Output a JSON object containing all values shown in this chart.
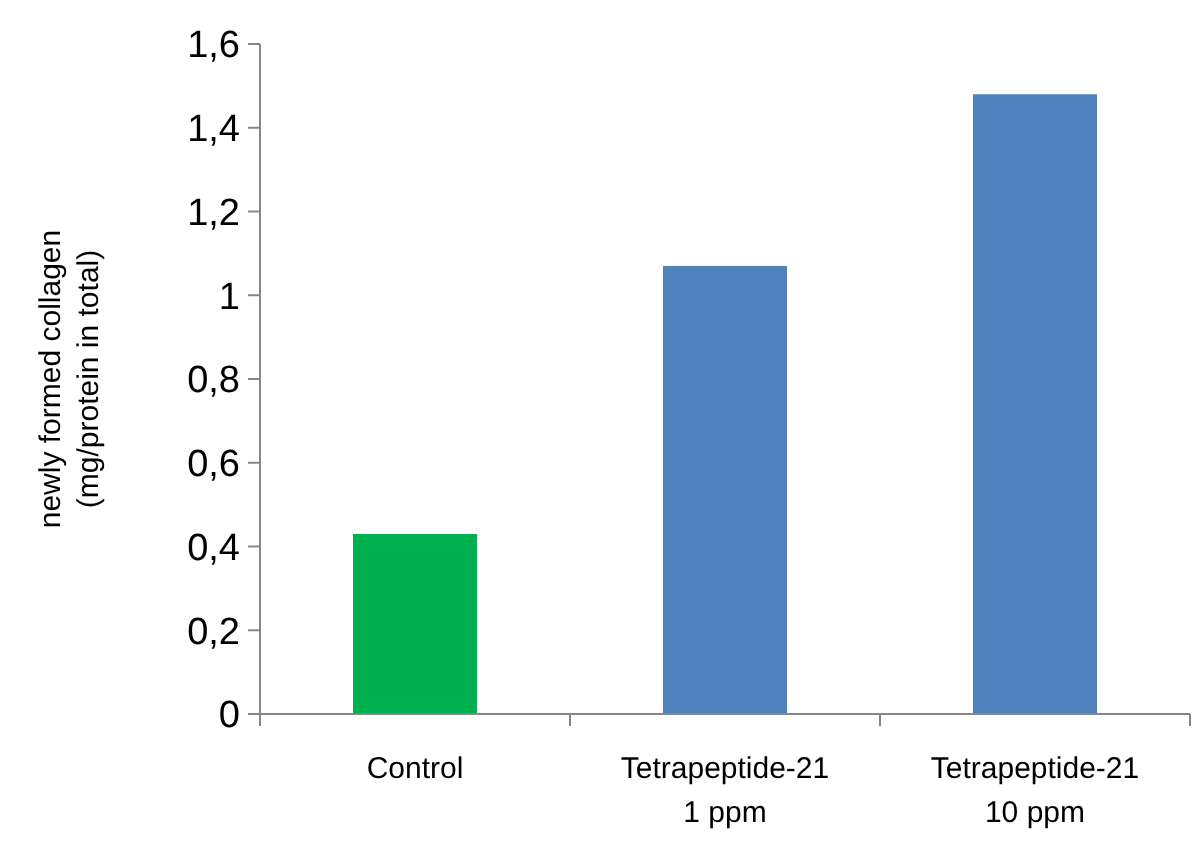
{
  "chart_data": {
    "type": "bar",
    "ylabel": "newly formed  collagen\n(mg/protein in total)",
    "categories": [
      "Control",
      "Tetrapeptide-21\n1 ppm",
      "Tetrapeptide-21\n10 ppm"
    ],
    "values": [
      0.43,
      1.07,
      1.48
    ],
    "colors": [
      "#00b050",
      "#4f81bd",
      "#4f81bd"
    ],
    "ylim": [
      0,
      1.6
    ],
    "yticks": [
      0,
      {
        "value": 0.2,
        "label": "0,2"
      },
      {
        "value": 0.4,
        "label": "0,4"
      },
      {
        "value": 0.6,
        "label": "0,6"
      },
      {
        "value": 0.8,
        "label": "0,8"
      },
      1,
      {
        "value": 1.2,
        "label": "1,2"
      },
      {
        "value": 1.4,
        "label": "1,4"
      },
      {
        "value": 1.6,
        "label": "1,6"
      }
    ],
    "grid": false
  }
}
